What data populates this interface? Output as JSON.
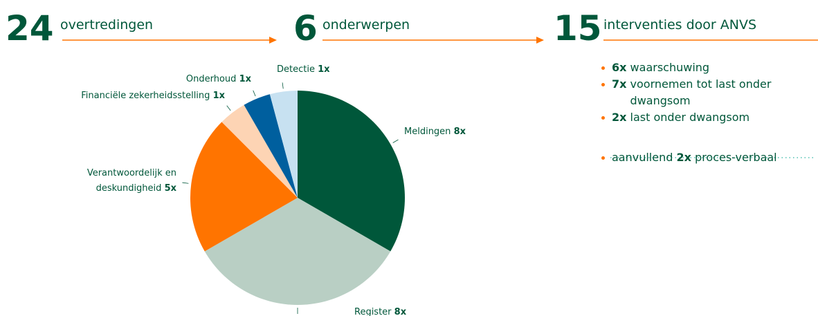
{
  "stats": [
    {
      "value": 24,
      "label": "overtredingen"
    },
    {
      "value": 6,
      "label": "onderwerpen"
    },
    {
      "value": 15,
      "label": "interventies door ANVS"
    }
  ],
  "chart_data": {
    "type": "pie",
    "categories": [
      "Meldingen",
      "Register",
      "Verantwoordelijk en deskundigheid",
      "Financiële zekerheidsstelling",
      "Onderhoud",
      "Detectie"
    ],
    "values": [
      8,
      8,
      5,
      1,
      1,
      1
    ],
    "value_labels": [
      "8x",
      "8x",
      "5x",
      "1x",
      "1x",
      "1x"
    ],
    "colors": [
      "#00573a",
      "#b9cfc4",
      "#ff7400",
      "#fdd4b4",
      "#005f9e",
      "#c7e1f1"
    ]
  },
  "interventions": [
    {
      "count": "6x",
      "text": "waarschuwing"
    },
    {
      "count": "7x",
      "text": "voornemen tot last onder dwangsom"
    },
    {
      "count": "2x",
      "text": "last onder dwangsom"
    },
    {
      "pre": "aanvullend",
      "count": "2x",
      "text": "proces-verbaal"
    }
  ]
}
